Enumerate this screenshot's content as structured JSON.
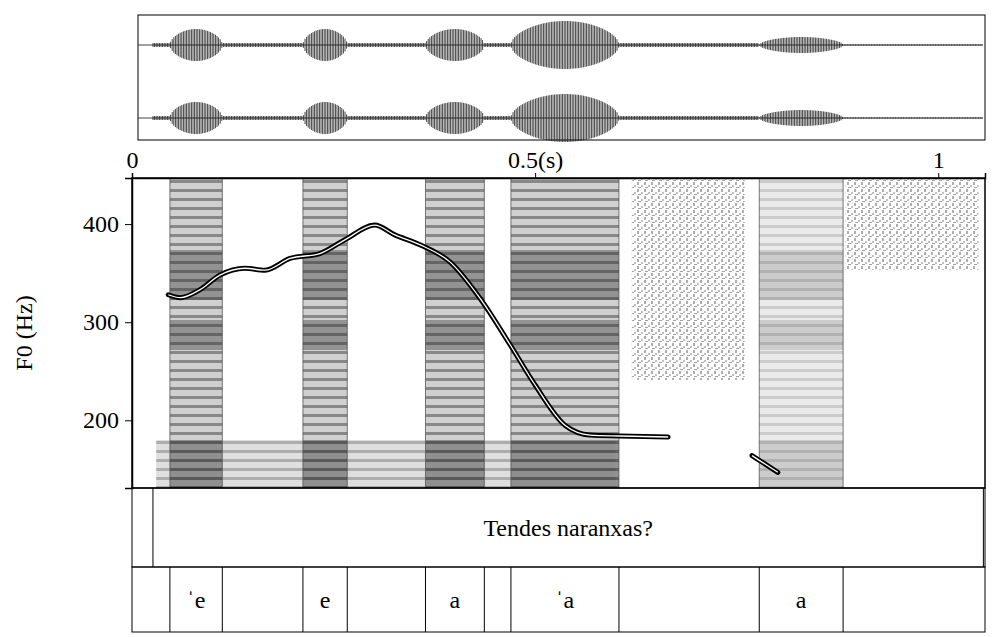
{
  "chart_data": {
    "type": "line",
    "color": "#000000",
    "y_label": "F0 (Hz)",
    "x": [
      0.045,
      0.06,
      0.084,
      0.109,
      0.14,
      0.165,
      0.196,
      0.233,
      0.264,
      0.301,
      0.326,
      0.357,
      0.395,
      0.432,
      0.469,
      0.5,
      0.537,
      0.568,
      0.605,
      0.665,
      0.72,
      0.769,
      0.801
    ],
    "values": [
      328,
      325,
      333,
      348,
      355,
      353,
      365,
      370,
      384,
      399,
      389,
      379,
      361,
      324,
      277,
      236,
      195,
      185,
      184,
      183,
      null,
      164,
      147
    ],
    "xlim": [
      0,
      1.058
    ],
    "xticks": [
      0,
      {
        "value": 0.5,
        "label": "0.5(s)"
      },
      1
    ],
    "ylim": [
      131,
      447
    ],
    "yticks": [
      200,
      300,
      400
    ],
    "tiers": [
      {
        "intervals": [
          {
            "start": 0.026,
            "end": 1.056,
            "label": "Tendes naranxas?"
          }
        ]
      },
      {
        "intervals": [
          {
            "start": 0.047,
            "end": 0.112,
            "label": "ˈe"
          },
          {
            "start": 0.212,
            "end": 0.267,
            "label": "e"
          },
          {
            "start": 0.364,
            "end": 0.437,
            "label": "a"
          },
          {
            "start": 0.47,
            "end": 0.604,
            "label": "ˈa"
          },
          {
            "start": 0.778,
            "end": 0.882,
            "label": "a"
          }
        ]
      }
    ]
  }
}
